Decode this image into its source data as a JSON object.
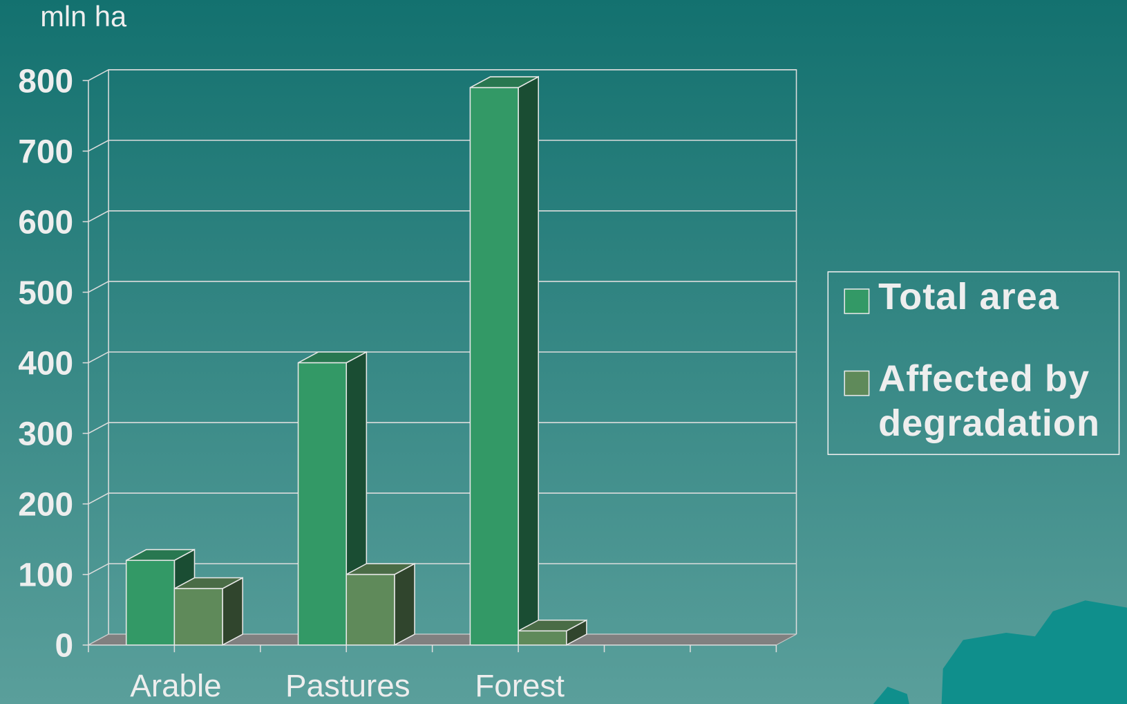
{
  "chart_data": {
    "type": "bar3d",
    "y_label": "mln ha",
    "categories": [
      "Arable",
      "Pastures",
      "Forest",
      null
    ],
    "series": [
      {
        "name": "Total area",
        "color": "#339966",
        "values": [
          120,
          400,
          790,
          null
        ]
      },
      {
        "name": "Affected by degradation",
        "color": "#5f8a5a",
        "values": [
          80,
          100,
          20,
          null
        ]
      }
    ],
    "ylim": [
      0,
      800
    ],
    "yticks": [
      0,
      100,
      200,
      300,
      400,
      500,
      600,
      700,
      800
    ],
    "grid": true,
    "legend": "right"
  }
}
